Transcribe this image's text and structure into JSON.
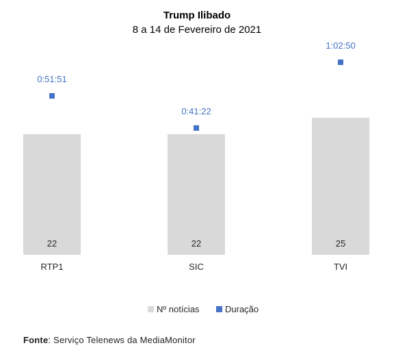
{
  "chart_data": {
    "type": "bar",
    "title": "Trump Ilibado",
    "subtitle": "8 a 14 de Fevereiro de 2021",
    "categories": [
      "RTP1",
      "SIC",
      "TVI"
    ],
    "series": [
      {
        "name": "Nº notícias",
        "kind": "bar",
        "color": "#d9d9d9",
        "values": [
          22,
          22,
          25
        ],
        "labels": [
          "22",
          "22",
          "25"
        ]
      },
      {
        "name": "Duração",
        "kind": "marker",
        "color": "#4472c4",
        "values": [
          "0:51:51",
          "0:41:22",
          "1:02:50"
        ],
        "values_seconds": [
          3111,
          2482,
          3770
        ],
        "labels": [
          "0:51:51",
          "0:41:22",
          "1:02:50"
        ]
      }
    ],
    "ylim_primary": [
      0,
      28
    ],
    "ylim_secondary_seconds": [
      0,
      4320
    ],
    "grid": false,
    "legend_position": "bottom"
  },
  "source": {
    "label": "Fonte",
    "text": ": Serviço Telenews da MediaMonitor"
  }
}
